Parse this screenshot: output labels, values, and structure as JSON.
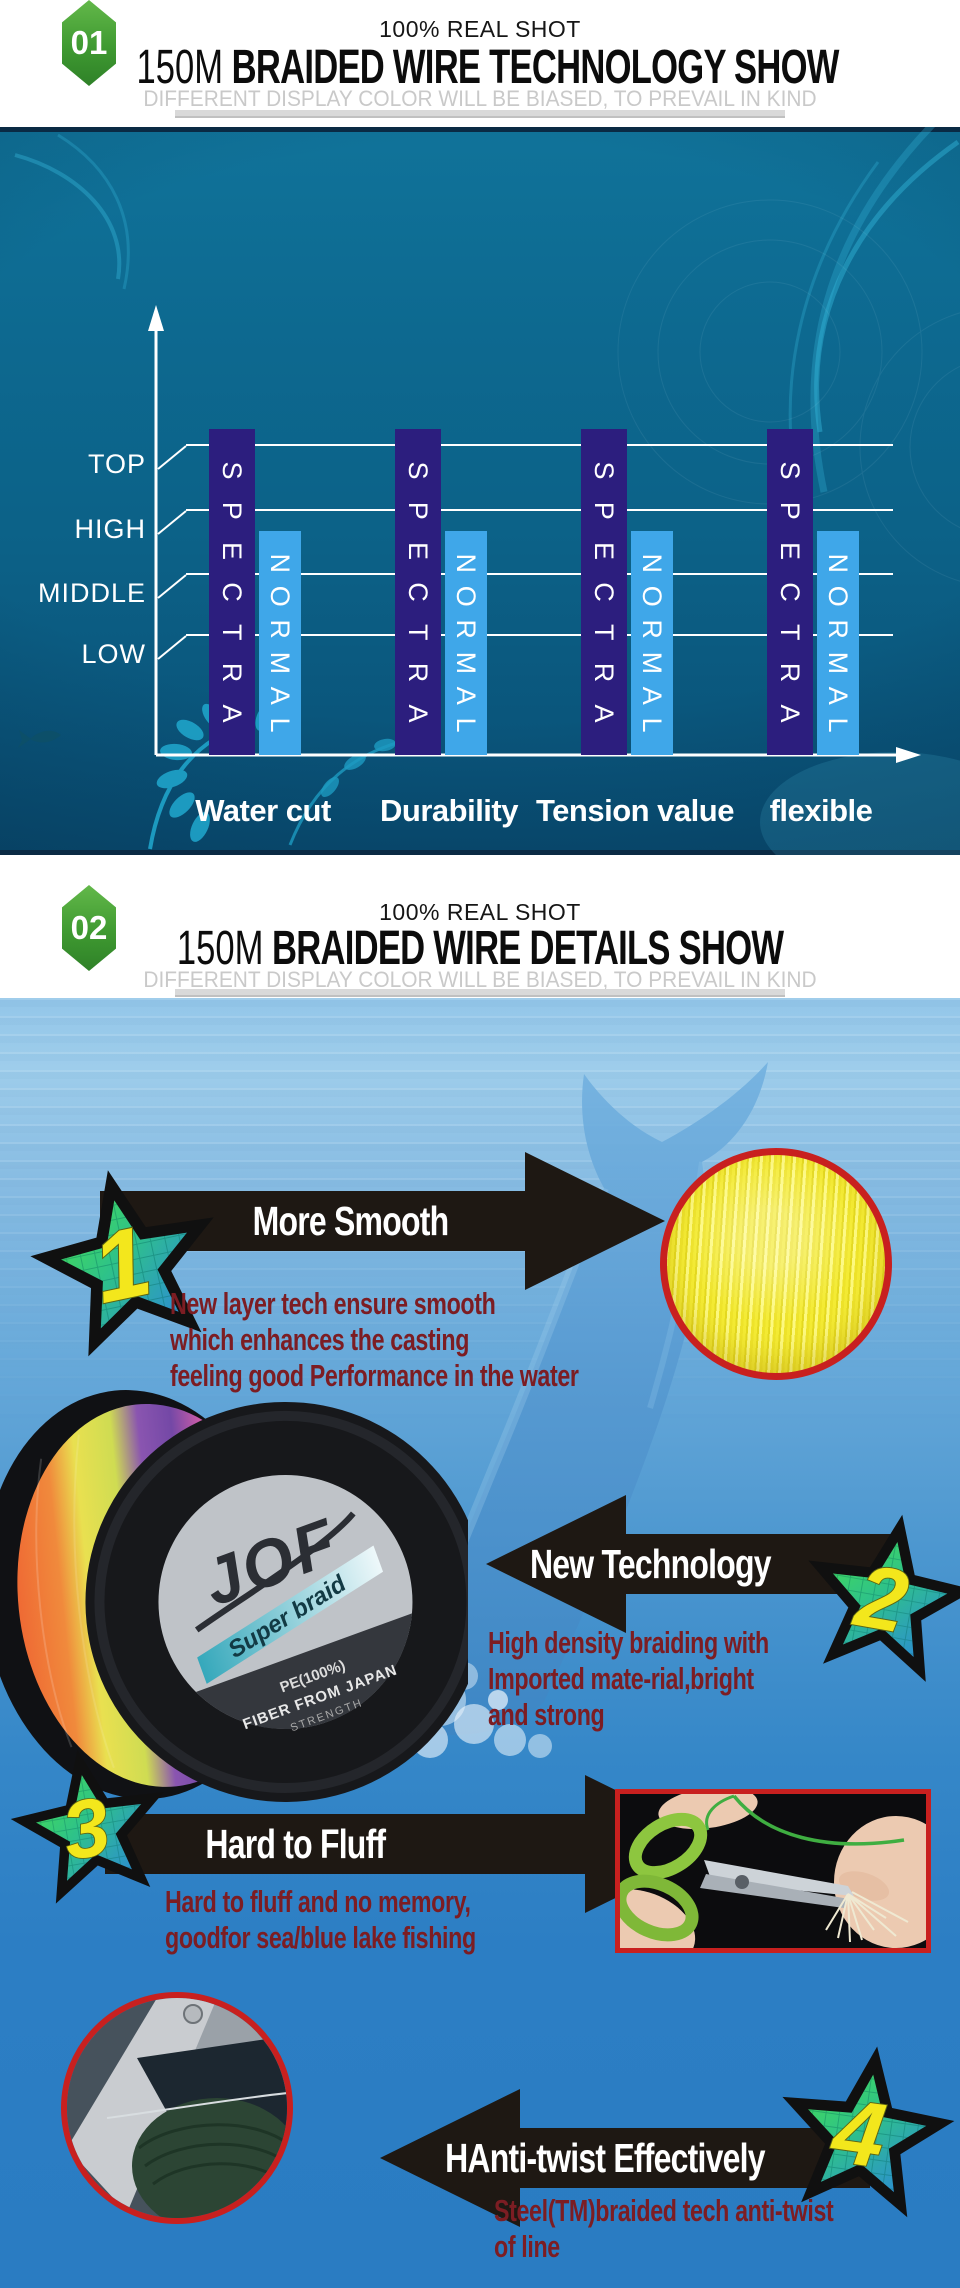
{
  "page_title": "150M Braided Wire product infographic",
  "sections": {
    "tech": {
      "badge": "01",
      "kicker": "100% REAL SHOT",
      "title_prefix": "150M",
      "title": "BRAIDED WIRE TECHNOLOGY SHOW",
      "disclaimer": "DIFFERENT DISPLAY COLOR WILL BE BIASED, TO PREVAIL IN KIND"
    },
    "details": {
      "badge": "02",
      "kicker": "100% REAL SHOT",
      "title_prefix": "150M",
      "title": "BRAIDED WIRE DETAILS SHOW",
      "disclaimer": "DIFFERENT DISPLAY COLOR WILL BE BIASED, TO PREVAIL IN KIND"
    }
  },
  "chart_data": {
    "type": "bar",
    "title": "",
    "categories": [
      "Water cut",
      "Durability",
      "Tension value",
      "flexible"
    ],
    "series": [
      {
        "name": "SPECTRA",
        "color": "#2c1e7e",
        "values": [
          5.1,
          5.1,
          5.1,
          5.1
        ]
      },
      {
        "name": "NORMAL",
        "color": "#3fa7e9",
        "values": [
          3.5,
          3.5,
          3.5,
          3.5
        ]
      }
    ],
    "y_ticks": [
      {
        "label": "TOP",
        "value": 4.85
      },
      {
        "label": "HIGH",
        "value": 3.83
      },
      {
        "label": "MIDDLE",
        "value": 2.83
      },
      {
        "label": "LOW",
        "value": 1.88
      }
    ],
    "ylim": [
      0,
      6.2
    ],
    "grid": true,
    "legend": "series names printed vertically inside each bar",
    "note": "qualitative comparison: SPECTRA braided line rated above NORMAL line in every category"
  },
  "features": [
    {
      "number": "1",
      "title": "More Smooth",
      "direction": "right",
      "desc_lines": [
        "New layer tech ensure smooth",
        "which enhances the casting",
        "feeling good Performance in the water"
      ]
    },
    {
      "number": "2",
      "title": "New Technology",
      "direction": "left",
      "desc_lines": [
        "High density braiding with",
        "Imported mate-rial,bright",
        "and strong"
      ]
    },
    {
      "number": "3",
      "title": "Hard to Fluff",
      "direction": "right",
      "desc_lines": [
        "Hard to fluff and no memory,",
        "goodfor sea/blue lake fishing"
      ]
    },
    {
      "number": "4",
      "title": "HAnti-twist Effectively",
      "direction": "left",
      "desc_lines": [
        "Steel(TM)braided tech anti-twist",
        "of line"
      ]
    }
  ],
  "spool": {
    "brand": "JOF",
    "tagline": "Super braid",
    "label_lines": [
      "PE(100%)",
      "FIBER FROM JAPAN",
      "STRENGTH"
    ]
  },
  "colors": {
    "badge_green": "#3f9a31",
    "spectra_bar": "#2c1e7e",
    "normal_bar": "#3fa7e9",
    "chart_bg_top": "#10739a",
    "chart_bg_bottom": "#094e74",
    "details_bg_top": "#93c6e9",
    "details_bg_bottom": "#2a7cc2",
    "arrow_black": "#1e1813",
    "feature_text_maroon": "#7c1d23",
    "photo_border_red": "#c8201f",
    "star_number_yellow": "#f3e71c",
    "disclaimer_gray": "#c9c9c9"
  }
}
